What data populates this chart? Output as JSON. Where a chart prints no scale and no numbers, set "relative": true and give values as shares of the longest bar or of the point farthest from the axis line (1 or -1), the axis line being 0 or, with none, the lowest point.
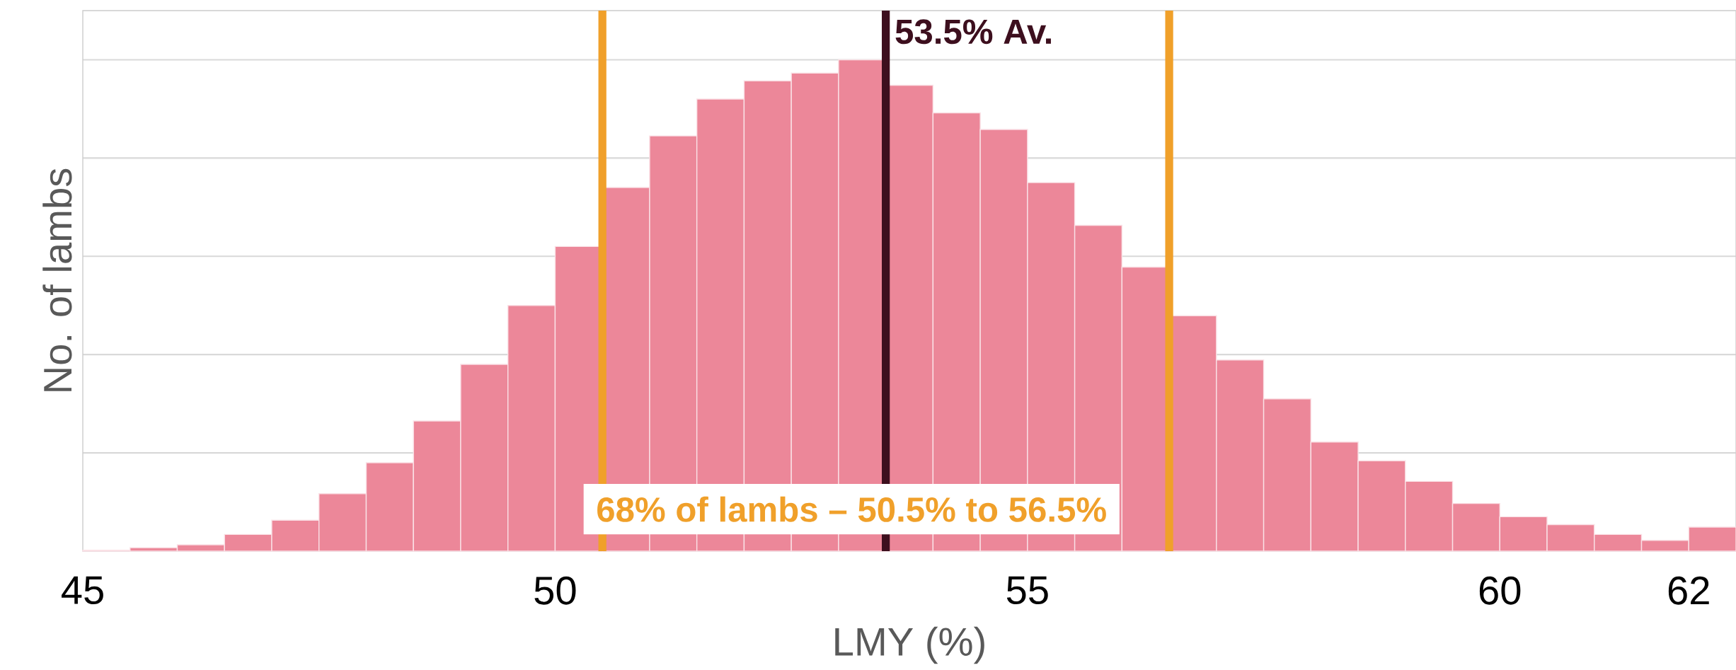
{
  "chart_data": {
    "type": "bar",
    "xlabel": "LMY (%)",
    "ylabel": "No. of lambs",
    "relative": true,
    "color": "#ec8799",
    "x": [
      45.25,
      45.75,
      46.25,
      46.75,
      47.25,
      47.75,
      48.25,
      48.75,
      49.25,
      49.75,
      50.25,
      50.75,
      51.25,
      51.75,
      52.25,
      52.75,
      53.25,
      53.75,
      54.25,
      54.75,
      55.25,
      55.75,
      56.25,
      56.75,
      57.25,
      57.75,
      58.25,
      58.75,
      59.25,
      59.75,
      60.25,
      60.75,
      61.25,
      61.75,
      62.25
    ],
    "values": [
      0.002,
      0.007,
      0.013,
      0.034,
      0.063,
      0.117,
      0.18,
      0.265,
      0.38,
      0.5,
      0.62,
      0.74,
      0.845,
      0.92,
      0.957,
      0.973,
      1,
      0.948,
      0.892,
      0.858,
      0.75,
      0.663,
      0.578,
      0.479,
      0.389,
      0.31,
      0.222,
      0.184,
      0.142,
      0.097,
      0.07,
      0.054,
      0.034,
      0.022,
      0.049
    ],
    "xlim": [
      45,
      62.5
    ],
    "xticks": [
      45,
      50,
      55,
      60,
      62
    ],
    "grid": "y",
    "ref_lines": [
      {
        "axis": "x",
        "value": 53.5,
        "label": "53.5% Av.",
        "color": "#3d0f1e"
      },
      {
        "axis": "x",
        "value": 50.5,
        "color": "#f0a02a"
      },
      {
        "axis": "x",
        "value": 56.5,
        "color": "#f0a02a"
      }
    ],
    "annotations": [
      "68% of lambs – 50.5% to 56.5%"
    ]
  }
}
